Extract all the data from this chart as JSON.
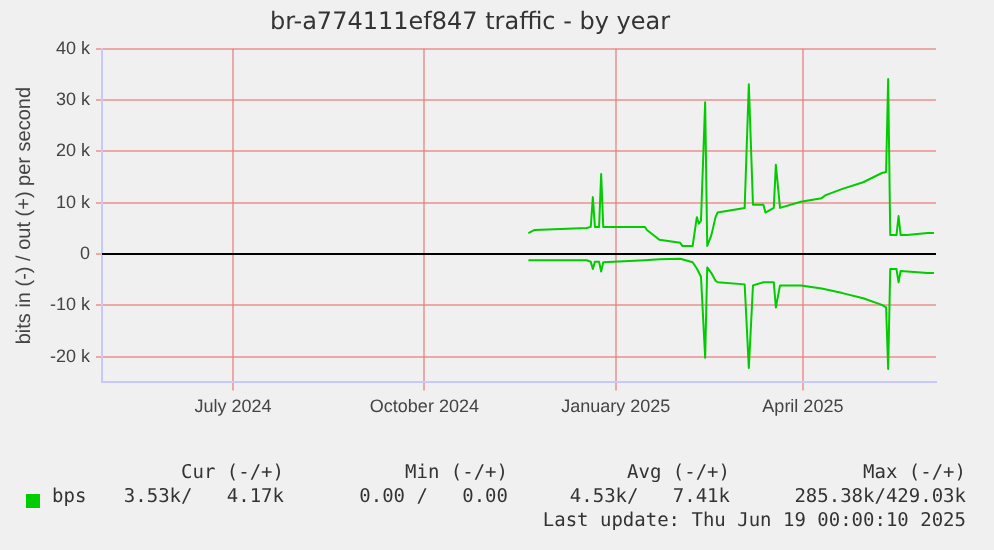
{
  "chart_data": {
    "type": "line",
    "title": "br-a774111ef847 traffic - by year",
    "ylabel": "bits in (-) / out (+) per second",
    "xlim": [
      "2024-05-14",
      "2025-06-19"
    ],
    "xticks": [
      {
        "value": "2024-07-16",
        "label": "July 2024"
      },
      {
        "value": "2024-10-16",
        "label": "October 2024"
      },
      {
        "value": "2025-01-16",
        "label": "January 2025"
      },
      {
        "value": "2025-04-16",
        "label": "April 2025"
      }
    ],
    "ylim": [
      -25000,
      40000
    ],
    "yticks": [
      {
        "value": -20000,
        "label": "-20 k"
      },
      {
        "value": -10000,
        "label": "-10 k"
      },
      0,
      {
        "value": 10000,
        "label": "10 k"
      },
      {
        "value": 20000,
        "label": "20 k"
      },
      {
        "value": 30000,
        "label": "30 k"
      },
      {
        "value": 40000,
        "label": "40 k"
      }
    ],
    "grid": true,
    "legend": "bottom left",
    "marker": "none",
    "line_style": "solid",
    "ref_lines": [
      {
        "axis": "y",
        "value": 0,
        "color": "#000000"
      }
    ],
    "series": [
      {
        "name": "bps",
        "color": "#00cc00",
        "x": [
          "2024-12-05",
          "2024-12-08",
          "2025-01-02",
          "2025-01-04",
          "2025-01-05",
          "2025-01-06",
          "2025-01-08",
          "2025-01-09",
          "2025-01-10",
          "2025-01-30",
          "2025-01-31",
          "2025-02-06",
          "2025-02-16",
          "2025-02-17",
          "2025-02-22",
          "2025-02-24",
          "2025-02-25",
          "2025-02-26",
          "2025-02-28",
          "2025-03-01",
          "2025-03-03",
          "2025-03-05",
          "2025-03-06",
          "2025-03-19",
          "2025-03-21",
          "2025-03-23",
          "2025-03-28",
          "2025-03-29",
          "2025-04-02",
          "2025-04-03",
          "2025-04-05",
          "2025-04-15",
          "2025-04-25",
          "2025-04-27",
          "2025-05-05",
          "2025-05-15",
          "2025-05-24",
          "2025-05-26",
          "2025-05-27",
          "2025-05-28",
          "2025-05-31",
          "2025-06-01",
          "2025-06-02",
          "2025-06-05",
          "2025-06-15",
          "2025-06-18"
        ],
        "values": [
          4100,
          4700,
          5100,
          5300,
          11100,
          5300,
          5300,
          15600,
          5300,
          5300,
          4700,
          2800,
          2200,
          1600,
          1600,
          7200,
          5900,
          6500,
          29600,
          1600,
          3700,
          7200,
          8100,
          9000,
          33100,
          9600,
          9600,
          8100,
          9000,
          17400,
          9000,
          10200,
          10900,
          11500,
          12700,
          14000,
          15800,
          16000,
          34100,
          3700,
          3700,
          7400,
          3700,
          3700,
          4100,
          4100
        ]
      },
      {
        "color": "#00cc00",
        "x": [
          "2024-12-05",
          "2025-01-02",
          "2025-01-04",
          "2025-01-05",
          "2025-01-06",
          "2025-01-08",
          "2025-01-09",
          "2025-01-10",
          "2025-01-30",
          "2025-02-06",
          "2025-02-16",
          "2025-02-22",
          "2025-02-24",
          "2025-02-26",
          "2025-02-28",
          "2025-03-01",
          "2025-03-03",
          "2025-03-05",
          "2025-03-06",
          "2025-03-19",
          "2025-03-21",
          "2025-03-23",
          "2025-03-28",
          "2025-04-02",
          "2025-04-03",
          "2025-04-05",
          "2025-04-15",
          "2025-04-25",
          "2025-05-05",
          "2025-05-15",
          "2025-05-24",
          "2025-05-26",
          "2025-05-27",
          "2025-05-28",
          "2025-05-31",
          "2025-06-01",
          "2025-06-02",
          "2025-06-15",
          "2025-06-18"
        ],
        "values": [
          -1200,
          -1200,
          -1500,
          -2900,
          -1500,
          -1500,
          -3400,
          -1600,
          -1200,
          -1000,
          -900,
          -1600,
          -2800,
          -4400,
          -20200,
          -2600,
          -3700,
          -5200,
          -5500,
          -5900,
          -22200,
          -6100,
          -5500,
          -5500,
          -10400,
          -6100,
          -6100,
          -6700,
          -7600,
          -8600,
          -9900,
          -10400,
          -22400,
          -2900,
          -2900,
          -5500,
          -3300,
          -3700,
          -3700
        ]
      }
    ],
    "annotations": [
      "Cur (-/+)",
      "Min (-/+)",
      "Avg (-/+)",
      "Max (-/+)",
      "3.53k/   4.17k",
      "0.00 /   0.00",
      "4.53k/   7.41k",
      "285.38k/429.03k",
      "Last update: Thu Jun 19 00:00:10 2025"
    ]
  }
}
